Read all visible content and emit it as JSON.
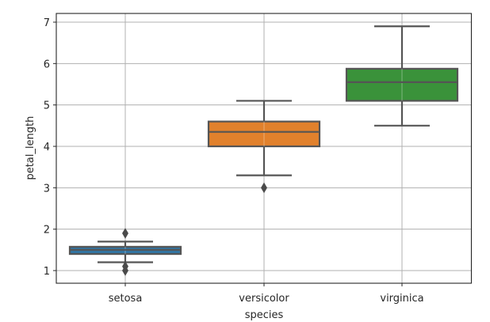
{
  "chart_data": {
    "type": "box",
    "title": "",
    "xlabel": "species",
    "ylabel": "petal_length",
    "categories": [
      "setosa",
      "versicolor",
      "virginica"
    ],
    "ylim": [
      0.7,
      7.2
    ],
    "yticks": [
      1,
      2,
      3,
      4,
      5,
      6,
      7
    ],
    "grid": true,
    "legend": null,
    "series": [
      {
        "name": "setosa",
        "color": "#3274a1",
        "whisker_low": 1.2,
        "q1": 1.4,
        "median": 1.5,
        "q3": 1.575,
        "whisker_high": 1.7,
        "outliers": [
          1.9,
          1.1,
          1.0
        ]
      },
      {
        "name": "versicolor",
        "color": "#e1812c",
        "whisker_low": 3.3,
        "q1": 4.0,
        "median": 4.35,
        "q3": 4.6,
        "whisker_high": 5.1,
        "outliers": [
          3.0
        ]
      },
      {
        "name": "virginica",
        "color": "#3a923a",
        "whisker_low": 4.5,
        "q1": 5.1,
        "median": 5.55,
        "q3": 5.875,
        "whisker_high": 6.9,
        "outliers": []
      }
    ]
  },
  "colors": {
    "frame": "#262626",
    "grid": "#b0b0b0",
    "box_edge": "#555555"
  }
}
